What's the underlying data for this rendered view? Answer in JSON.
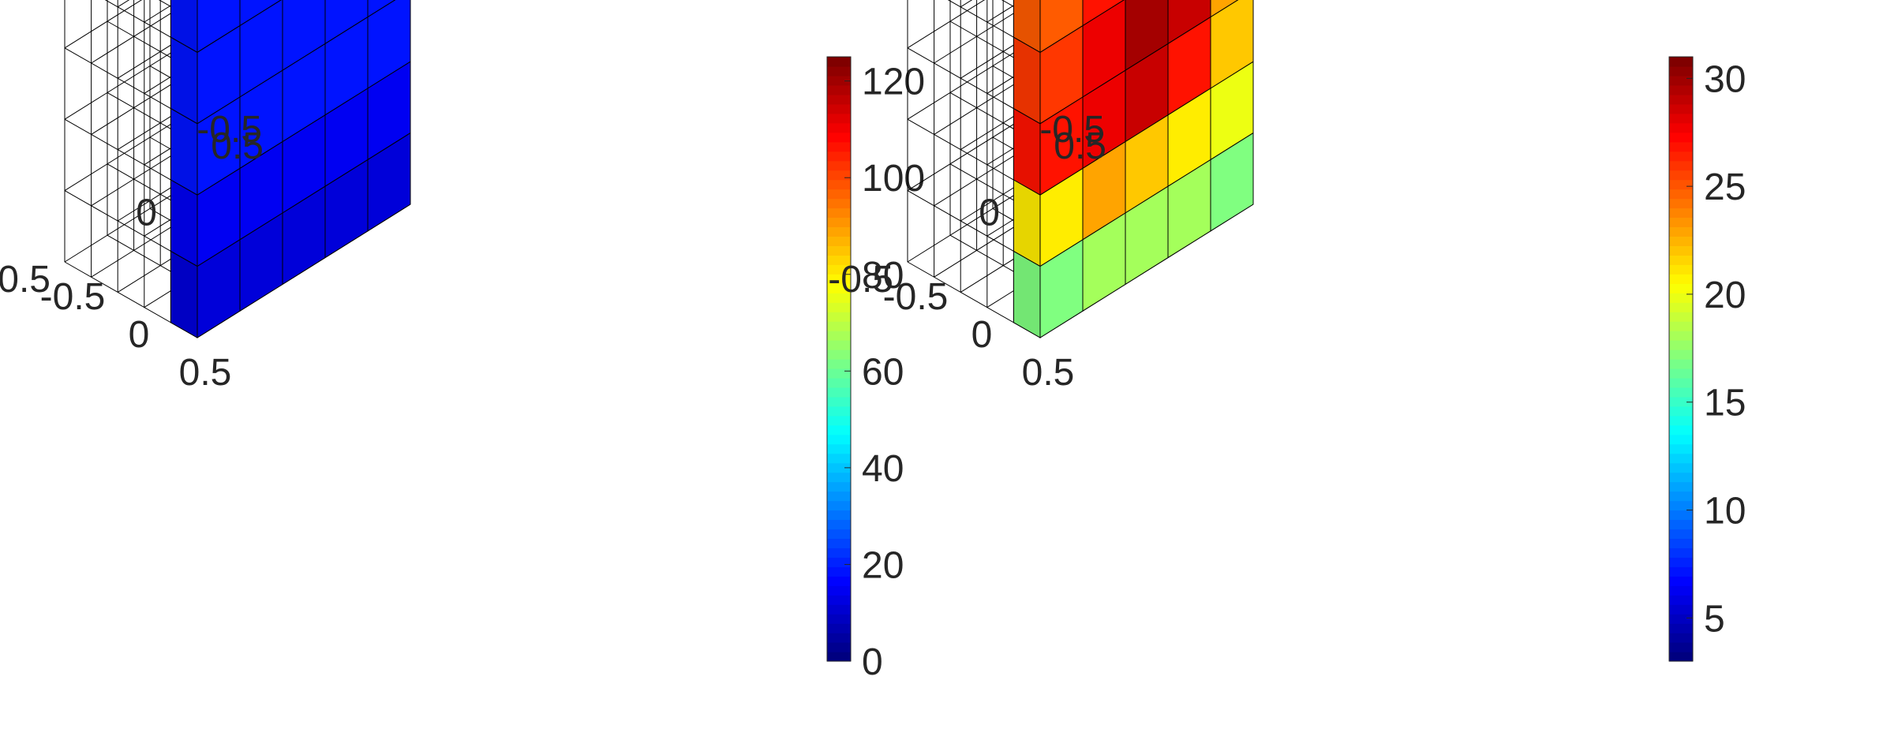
{
  "chart_data": [
    {
      "type": "voxel",
      "grid": [
        5,
        5,
        5
      ],
      "x_ticks": [
        "-0.5",
        "0",
        "0.5"
      ],
      "y_ticks": [
        "0.5",
        "0",
        "-0.5"
      ],
      "z_ticks": [
        "0.5",
        "0",
        "-0.5"
      ],
      "colorbar": {
        "colormap": "jet",
        "min": 0,
        "max": 125,
        "ticks": [
          "0",
          "20",
          "40",
          "60",
          "80",
          "100",
          "120"
        ],
        "tick_values": [
          0,
          20,
          40,
          60,
          80,
          100,
          120
        ]
      },
      "block_values": [
        [
          18,
          18,
          18,
          18,
          18
        ],
        [
          18,
          18,
          18,
          18,
          18
        ],
        [
          18,
          18,
          18,
          18,
          18
        ],
        [
          14,
          14,
          14,
          14,
          14
        ],
        [
          11,
          11,
          11,
          11,
          11
        ]
      ]
    },
    {
      "type": "voxel",
      "grid": [
        5,
        5,
        5
      ],
      "x_ticks": [
        "-0.5",
        "0",
        "0.5"
      ],
      "y_ticks": [
        "0.5",
        "0",
        "-0.5"
      ],
      "z_ticks": [
        "0.5",
        "0",
        "-0.5"
      ],
      "colorbar": {
        "colormap": "jet",
        "min": 3,
        "max": 31,
        "ticks": [
          "5",
          "10",
          "15",
          "20",
          "25",
          "30"
        ],
        "tick_values": [
          5,
          10,
          15,
          20,
          25,
          30
        ]
      },
      "block_values": [
        [
          24,
          27,
          28,
          27,
          25
        ],
        [
          23,
          29,
          30,
          28,
          26
        ],
        [
          22,
          27,
          29,
          28,
          27
        ],
        [
          20,
          21,
          22,
          23,
          21
        ],
        [
          17,
          18,
          18,
          18,
          17
        ]
      ]
    }
  ]
}
